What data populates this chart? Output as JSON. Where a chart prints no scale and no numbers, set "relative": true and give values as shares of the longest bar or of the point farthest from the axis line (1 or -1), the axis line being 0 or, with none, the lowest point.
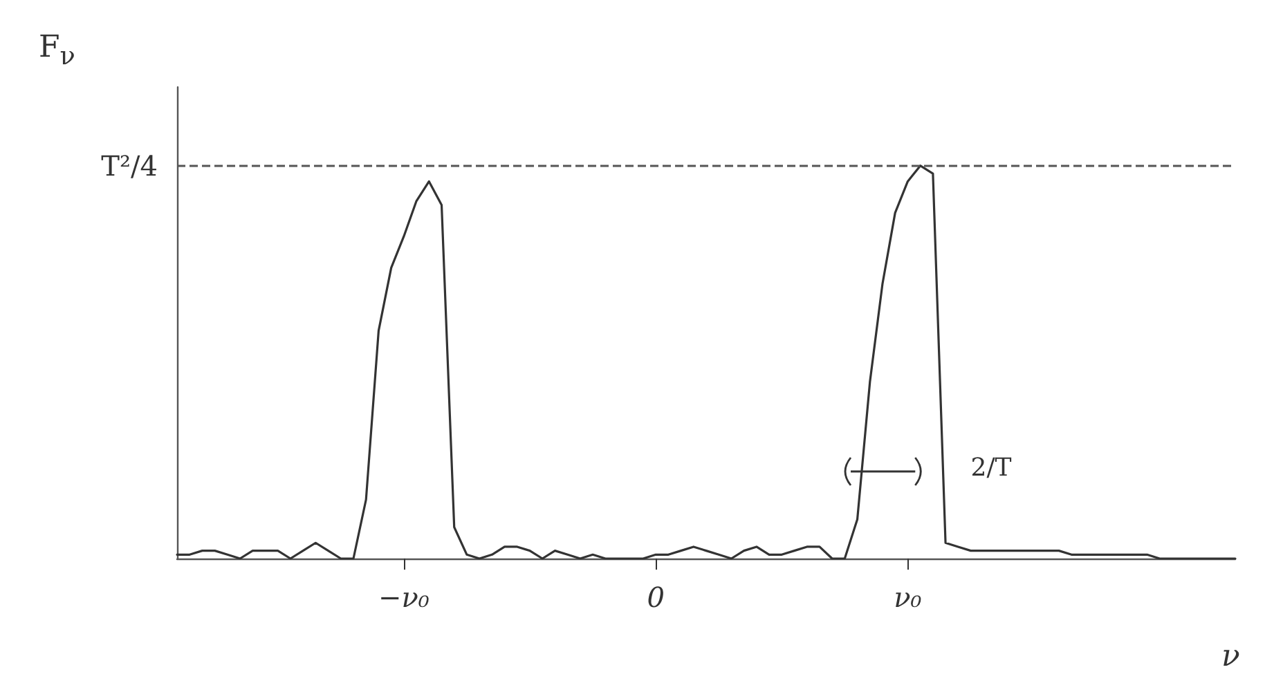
{
  "chart_data": {
    "type": "line",
    "relative": true,
    "xlabel": "ν",
    "ylabel": "F$_{ν}$",
    "categories": [
      null,
      null,
      null,
      null,
      null,
      null,
      null,
      null,
      null,
      null,
      null,
      null,
      null,
      null,
      null,
      null,
      null,
      null,
      "−ν₀",
      null,
      null,
      null,
      null,
      null,
      null,
      null,
      null,
      null,
      null,
      null,
      null,
      null,
      null,
      null,
      null,
      null,
      null,
      null,
      "0",
      null,
      null,
      null,
      null,
      null,
      null,
      null,
      null,
      null,
      null,
      null,
      null,
      null,
      null,
      null,
      null,
      null,
      null,
      null,
      "ν₀",
      null,
      null,
      null,
      null,
      null,
      null,
      null,
      null,
      null,
      null,
      null,
      null,
      null,
      null,
      null,
      null,
      null,
      null,
      null,
      null,
      null,
      null,
      null,
      null,
      null,
      null
    ],
    "series": [
      {
        "color": "#333333",
        "values": [
          0.01,
          0.01,
          0.02,
          0.02,
          0.01,
          0.0,
          0.02,
          0.02,
          0.02,
          0.0,
          0.02,
          0.04,
          0.02,
          0.0,
          0.0,
          0.15,
          0.58,
          0.74,
          0.82,
          0.91,
          0.96,
          0.9,
          0.08,
          0.01,
          0.0,
          0.01,
          0.03,
          0.03,
          0.02,
          0.0,
          0.02,
          0.01,
          0.0,
          0.01,
          0.0,
          0.0,
          0.0,
          0.0,
          0.01,
          0.01,
          0.02,
          0.03,
          0.02,
          0.01,
          0.0,
          0.02,
          0.03,
          0.01,
          0.01,
          0.02,
          0.03,
          0.03,
          0.0,
          0.0,
          0.1,
          0.45,
          0.7,
          0.88,
          0.96,
          1.0,
          0.98,
          0.04,
          0.03,
          0.02,
          0.02,
          0.02,
          0.02,
          0.02,
          0.02,
          0.02,
          0.02,
          0.01,
          0.01,
          0.01,
          0.01,
          0.01,
          0.01,
          0.01,
          0.0,
          0.0,
          0.0,
          0.0,
          0.0,
          0.0,
          0.0
        ]
      }
    ],
    "marker": "none",
    "line_style": "solid",
    "grid": false,
    "ref_lines": [
      {
        "axis": "y",
        "value": 1,
        "label": "T²/4",
        "line_style": "dashed",
        "color": "#555555"
      }
    ],
    "annotations": [
      "2/T"
    ]
  }
}
